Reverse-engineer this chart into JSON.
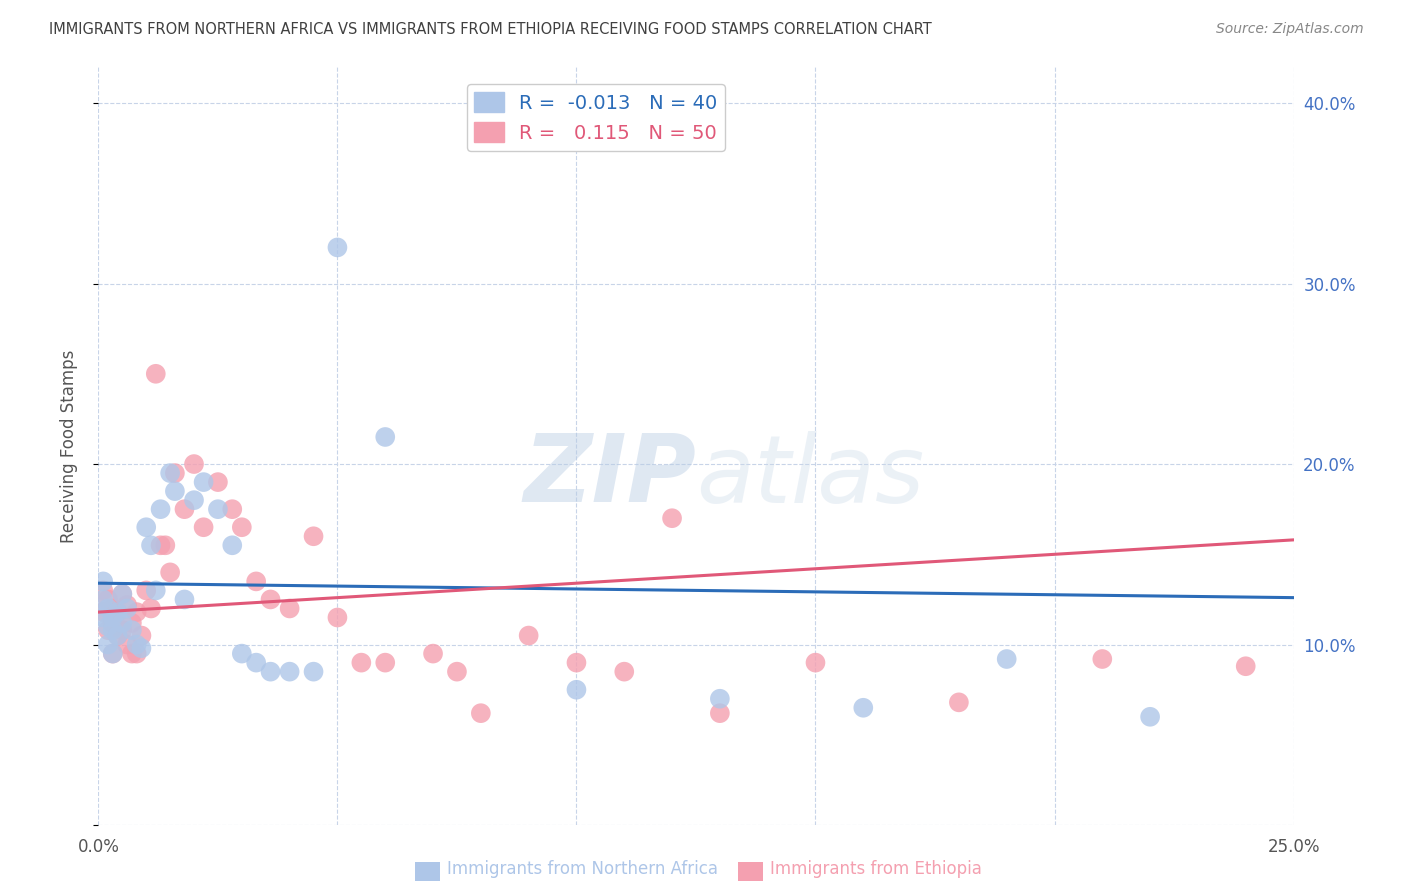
{
  "title": "IMMIGRANTS FROM NORTHERN AFRICA VS IMMIGRANTS FROM ETHIOPIA RECEIVING FOOD STAMPS CORRELATION CHART",
  "source": "Source: ZipAtlas.com",
  "ylabel": "Receiving Food Stamps",
  "xlabel_blue": "Immigrants from Northern Africa",
  "xlabel_pink": "Immigrants from Ethiopia",
  "xlim": [
    0.0,
    0.25
  ],
  "ylim": [
    0.0,
    0.42
  ],
  "xticks": [
    0.0,
    0.05,
    0.1,
    0.15,
    0.2,
    0.25
  ],
  "yticks": [
    0.0,
    0.1,
    0.2,
    0.3,
    0.4
  ],
  "blue_R": -0.013,
  "blue_N": 40,
  "pink_R": 0.115,
  "pink_N": 50,
  "blue_color": "#aec6e8",
  "pink_color": "#f4a0b0",
  "blue_line_color": "#2b6cb8",
  "pink_line_color": "#e05878",
  "watermark_zip": "ZIP",
  "watermark_atlas": "atlas",
  "background_color": "#ffffff",
  "grid_color": "#c8d4e8",
  "title_color": "#404040",
  "axis_label_color": "#555555",
  "right_tick_color": "#4472c4",
  "blue_scatter_x": [
    0.001,
    0.001,
    0.001,
    0.002,
    0.002,
    0.002,
    0.003,
    0.003,
    0.003,
    0.004,
    0.004,
    0.005,
    0.005,
    0.006,
    0.007,
    0.008,
    0.009,
    0.01,
    0.011,
    0.012,
    0.013,
    0.015,
    0.016,
    0.018,
    0.02,
    0.022,
    0.025,
    0.028,
    0.03,
    0.033,
    0.036,
    0.04,
    0.045,
    0.05,
    0.06,
    0.1,
    0.13,
    0.16,
    0.19,
    0.22
  ],
  "blue_scatter_y": [
    0.135,
    0.125,
    0.115,
    0.12,
    0.11,
    0.1,
    0.115,
    0.108,
    0.095,
    0.118,
    0.105,
    0.128,
    0.112,
    0.12,
    0.108,
    0.1,
    0.098,
    0.165,
    0.155,
    0.13,
    0.175,
    0.195,
    0.185,
    0.125,
    0.18,
    0.19,
    0.175,
    0.155,
    0.095,
    0.09,
    0.085,
    0.085,
    0.085,
    0.32,
    0.215,
    0.075,
    0.07,
    0.065,
    0.092,
    0.06
  ],
  "pink_scatter_x": [
    0.001,
    0.001,
    0.002,
    0.002,
    0.003,
    0.003,
    0.003,
    0.004,
    0.004,
    0.005,
    0.005,
    0.006,
    0.006,
    0.007,
    0.007,
    0.008,
    0.008,
    0.009,
    0.01,
    0.011,
    0.012,
    0.013,
    0.014,
    0.015,
    0.016,
    0.018,
    0.02,
    0.022,
    0.025,
    0.028,
    0.03,
    0.033,
    0.036,
    0.04,
    0.045,
    0.05,
    0.055,
    0.06,
    0.07,
    0.075,
    0.08,
    0.09,
    0.1,
    0.11,
    0.12,
    0.13,
    0.15,
    0.18,
    0.21,
    0.24
  ],
  "pink_scatter_y": [
    0.13,
    0.118,
    0.125,
    0.108,
    0.12,
    0.112,
    0.095,
    0.118,
    0.105,
    0.128,
    0.108,
    0.122,
    0.1,
    0.112,
    0.095,
    0.118,
    0.095,
    0.105,
    0.13,
    0.12,
    0.25,
    0.155,
    0.155,
    0.14,
    0.195,
    0.175,
    0.2,
    0.165,
    0.19,
    0.175,
    0.165,
    0.135,
    0.125,
    0.12,
    0.16,
    0.115,
    0.09,
    0.09,
    0.095,
    0.085,
    0.062,
    0.105,
    0.09,
    0.085,
    0.17,
    0.062,
    0.09,
    0.068,
    0.092,
    0.088
  ],
  "blue_trend_x": [
    0.0,
    0.25
  ],
  "blue_trend_y": [
    0.134,
    0.126
  ],
  "pink_trend_x": [
    0.0,
    0.25
  ],
  "pink_trend_y": [
    0.118,
    0.158
  ]
}
